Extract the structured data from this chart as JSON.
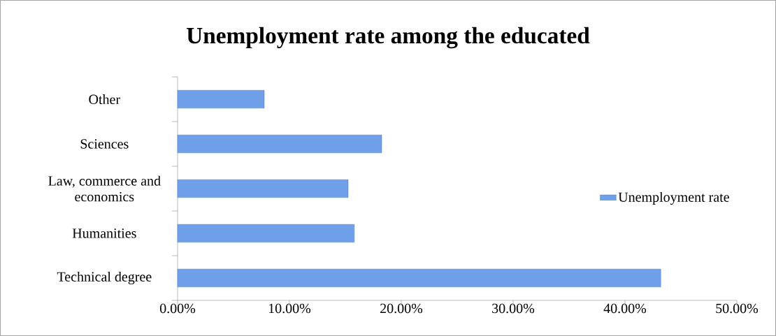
{
  "chart_data": {
    "type": "bar",
    "orientation": "horizontal",
    "title": "Unemployment rate among the educated",
    "categories": [
      "Other",
      "Sciences",
      "Law, commerce and economics",
      "Humanities",
      "Technical degree"
    ],
    "series": [
      {
        "name": "Unemployment rate",
        "color": "#6f9fe8",
        "values": [
          7.75,
          18.25,
          15.25,
          15.8,
          43.2
        ]
      }
    ],
    "xlim": [
      0,
      50
    ],
    "xticks": [
      {
        "value": 0,
        "label": "0.00%"
      },
      {
        "value": 10,
        "label": "10.00%"
      },
      {
        "value": 20,
        "label": "20.00%"
      },
      {
        "value": 30,
        "label": "30.00%"
      },
      {
        "value": 40,
        "label": "40.00%"
      },
      {
        "value": 50,
        "label": "50.00%"
      }
    ],
    "legend": "right"
  }
}
